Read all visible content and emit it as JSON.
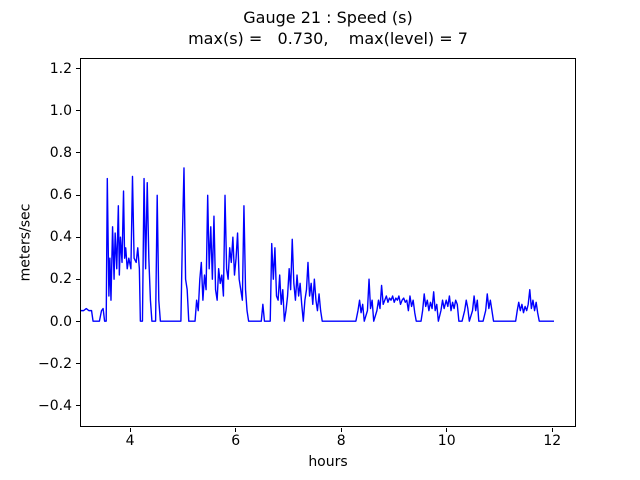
{
  "chart_data": {
    "type": "line",
    "title": "Gauge 21 : Speed (s)",
    "subtitle": "max(s) =   0.730,    max(level) = 7",
    "xlabel": "hours",
    "ylabel": "meters/sec",
    "xlim": [
      3.05,
      12.45
    ],
    "ylim": [
      -0.5,
      1.25
    ],
    "xticks": [
      4,
      6,
      8,
      10,
      12
    ],
    "xtick_labels": [
      "4",
      "6",
      "8",
      "10",
      "12"
    ],
    "yticks": [
      -0.4,
      -0.2,
      0.0,
      0.2,
      0.4,
      0.6,
      0.8,
      1.0,
      1.2
    ],
    "ytick_labels": [
      "−0.4",
      "−0.2",
      "0.0",
      "0.2",
      "0.4",
      "0.6",
      "0.8",
      "1.0",
      "1.2"
    ],
    "line_color": "#0000ff",
    "line_width": 1.4,
    "grid": false,
    "legend": null,
    "max_s": 0.73,
    "max_level": 7,
    "points": [
      [
        3.05,
        0.05
      ],
      [
        3.1,
        0.05
      ],
      [
        3.15,
        0.06
      ],
      [
        3.2,
        0.05
      ],
      [
        3.25,
        0.05
      ],
      [
        3.28,
        0.0
      ],
      [
        3.4,
        0.0
      ],
      [
        3.44,
        0.05
      ],
      [
        3.47,
        0.06
      ],
      [
        3.5,
        0.0
      ],
      [
        3.53,
        0.0
      ],
      [
        3.55,
        0.68
      ],
      [
        3.58,
        0.12
      ],
      [
        3.6,
        0.3
      ],
      [
        3.62,
        0.1
      ],
      [
        3.65,
        0.45
      ],
      [
        3.68,
        0.2
      ],
      [
        3.7,
        0.42
      ],
      [
        3.73,
        0.25
      ],
      [
        3.76,
        0.55
      ],
      [
        3.78,
        0.22
      ],
      [
        3.8,
        0.4
      ],
      [
        3.83,
        0.28
      ],
      [
        3.86,
        0.62
      ],
      [
        3.88,
        0.3
      ],
      [
        3.9,
        0.35
      ],
      [
        3.93,
        0.25
      ],
      [
        3.96,
        0.3
      ],
      [
        4.0,
        0.25
      ],
      [
        4.03,
        0.69
      ],
      [
        4.06,
        0.3
      ],
      [
        4.1,
        0.28
      ],
      [
        4.13,
        0.35
      ],
      [
        4.16,
        0.25
      ],
      [
        4.18,
        0.0
      ],
      [
        4.22,
        0.0
      ],
      [
        4.25,
        0.68
      ],
      [
        4.28,
        0.25
      ],
      [
        4.31,
        0.66
      ],
      [
        4.34,
        0.3
      ],
      [
        4.37,
        0.1
      ],
      [
        4.4,
        0.0
      ],
      [
        4.47,
        0.0
      ],
      [
        4.5,
        0.6
      ],
      [
        4.53,
        0.1
      ],
      [
        4.56,
        0.0
      ],
      [
        4.7,
        0.0
      ],
      [
        4.95,
        0.0
      ],
      [
        4.98,
        0.4
      ],
      [
        5.01,
        0.73
      ],
      [
        5.04,
        0.2
      ],
      [
        5.07,
        0.15
      ],
      [
        5.1,
        0.0
      ],
      [
        5.22,
        0.0
      ],
      [
        5.25,
        0.1
      ],
      [
        5.28,
        0.05
      ],
      [
        5.31,
        0.2
      ],
      [
        5.34,
        0.28
      ],
      [
        5.37,
        0.1
      ],
      [
        5.4,
        0.22
      ],
      [
        5.43,
        0.15
      ],
      [
        5.46,
        0.6
      ],
      [
        5.49,
        0.25
      ],
      [
        5.52,
        0.45
      ],
      [
        5.55,
        0.2
      ],
      [
        5.58,
        0.5
      ],
      [
        5.61,
        0.15
      ],
      [
        5.64,
        0.1
      ],
      [
        5.67,
        0.25
      ],
      [
        5.7,
        0.18
      ],
      [
        5.73,
        0.22
      ],
      [
        5.76,
        0.12
      ],
      [
        5.79,
        0.6
      ],
      [
        5.82,
        0.25
      ],
      [
        5.85,
        0.2
      ],
      [
        5.88,
        0.35
      ],
      [
        5.91,
        0.28
      ],
      [
        5.94,
        0.4
      ],
      [
        5.97,
        0.22
      ],
      [
        6.0,
        0.3
      ],
      [
        6.03,
        0.42
      ],
      [
        6.06,
        0.2
      ],
      [
        6.09,
        0.15
      ],
      [
        6.12,
        0.1
      ],
      [
        6.15,
        0.55
      ],
      [
        6.18,
        0.15
      ],
      [
        6.21,
        0.05
      ],
      [
        6.24,
        0.0
      ],
      [
        6.48,
        0.0
      ],
      [
        6.51,
        0.08
      ],
      [
        6.54,
        0.0
      ],
      [
        6.65,
        0.0
      ],
      [
        6.68,
        0.37
      ],
      [
        6.71,
        0.2
      ],
      [
        6.74,
        0.35
      ],
      [
        6.77,
        0.12
      ],
      [
        6.8,
        0.1
      ],
      [
        6.83,
        0.22
      ],
      [
        6.86,
        0.08
      ],
      [
        6.89,
        0.15
      ],
      [
        6.92,
        0.0
      ],
      [
        6.95,
        0.05
      ],
      [
        6.98,
        0.12
      ],
      [
        7.01,
        0.25
      ],
      [
        7.04,
        0.15
      ],
      [
        7.07,
        0.39
      ],
      [
        7.1,
        0.18
      ],
      [
        7.13,
        0.1
      ],
      [
        7.16,
        0.22
      ],
      [
        7.19,
        0.12
      ],
      [
        7.22,
        0.18
      ],
      [
        7.25,
        0.08
      ],
      [
        7.28,
        0.0
      ],
      [
        7.31,
        0.1
      ],
      [
        7.34,
        0.15
      ],
      [
        7.37,
        0.28
      ],
      [
        7.4,
        0.12
      ],
      [
        7.43,
        0.18
      ],
      [
        7.46,
        0.08
      ],
      [
        7.49,
        0.2
      ],
      [
        7.52,
        0.1
      ],
      [
        7.55,
        0.05
      ],
      [
        7.58,
        0.13
      ],
      [
        7.61,
        0.05
      ],
      [
        7.64,
        0.0
      ],
      [
        7.8,
        0.0
      ],
      [
        8.28,
        0.0
      ],
      [
        8.32,
        0.05
      ],
      [
        8.35,
        0.1
      ],
      [
        8.38,
        0.04
      ],
      [
        8.41,
        0.08
      ],
      [
        8.44,
        0.0
      ],
      [
        8.5,
        0.05
      ],
      [
        8.53,
        0.2
      ],
      [
        8.56,
        0.06
      ],
      [
        8.59,
        0.1
      ],
      [
        8.62,
        0.0
      ],
      [
        8.68,
        0.05
      ],
      [
        8.71,
        0.1
      ],
      [
        8.74,
        0.06
      ],
      [
        8.77,
        0.17
      ],
      [
        8.8,
        0.08
      ],
      [
        8.83,
        0.1
      ],
      [
        8.86,
        0.12
      ],
      [
        8.89,
        0.09
      ],
      [
        8.92,
        0.11
      ],
      [
        8.95,
        0.1
      ],
      [
        8.98,
        0.12
      ],
      [
        9.01,
        0.09
      ],
      [
        9.04,
        0.11
      ],
      [
        9.07,
        0.1
      ],
      [
        9.1,
        0.12
      ],
      [
        9.13,
        0.08
      ],
      [
        9.16,
        0.1
      ],
      [
        9.19,
        0.11
      ],
      [
        9.22,
        0.09
      ],
      [
        9.25,
        0.1
      ],
      [
        9.28,
        0.05
      ],
      [
        9.31,
        0.12
      ],
      [
        9.34,
        0.07
      ],
      [
        9.37,
        0.1
      ],
      [
        9.4,
        0.04
      ],
      [
        9.43,
        0.0
      ],
      [
        9.52,
        0.0
      ],
      [
        9.55,
        0.05
      ],
      [
        9.58,
        0.13
      ],
      [
        9.61,
        0.07
      ],
      [
        9.64,
        0.1
      ],
      [
        9.67,
        0.05
      ],
      [
        9.7,
        0.09
      ],
      [
        9.73,
        0.06
      ],
      [
        9.76,
        0.14
      ],
      [
        9.79,
        0.05
      ],
      [
        9.82,
        0.08
      ],
      [
        9.85,
        0.0
      ],
      [
        9.9,
        0.05
      ],
      [
        9.93,
        0.1
      ],
      [
        9.96,
        0.06
      ],
      [
        10.0,
        0.1
      ],
      [
        10.03,
        0.07
      ],
      [
        10.06,
        0.12
      ],
      [
        10.09,
        0.05
      ],
      [
        10.12,
        0.09
      ],
      [
        10.15,
        0.06
      ],
      [
        10.18,
        0.1
      ],
      [
        10.21,
        0.08
      ],
      [
        10.24,
        0.0
      ],
      [
        10.3,
        0.0
      ],
      [
        10.35,
        0.05
      ],
      [
        10.38,
        0.1
      ],
      [
        10.41,
        0.06
      ],
      [
        10.44,
        0.0
      ],
      [
        10.5,
        0.05
      ],
      [
        10.53,
        0.12
      ],
      [
        10.56,
        0.05
      ],
      [
        10.59,
        0.1
      ],
      [
        10.62,
        0.0
      ],
      [
        10.7,
        0.0
      ],
      [
        10.75,
        0.05
      ],
      [
        10.78,
        0.13
      ],
      [
        10.81,
        0.06
      ],
      [
        10.84,
        0.1
      ],
      [
        10.87,
        0.05
      ],
      [
        10.9,
        0.0
      ],
      [
        11.0,
        0.0
      ],
      [
        11.32,
        0.0
      ],
      [
        11.35,
        0.05
      ],
      [
        11.38,
        0.09
      ],
      [
        11.41,
        0.05
      ],
      [
        11.44,
        0.08
      ],
      [
        11.47,
        0.04
      ],
      [
        11.5,
        0.07
      ],
      [
        11.53,
        0.05
      ],
      [
        11.56,
        0.08
      ],
      [
        11.59,
        0.15
      ],
      [
        11.62,
        0.06
      ],
      [
        11.65,
        0.1
      ],
      [
        11.68,
        0.05
      ],
      [
        11.71,
        0.09
      ],
      [
        11.74,
        0.04
      ],
      [
        11.77,
        0.0
      ],
      [
        11.9,
        0.0
      ],
      [
        12.05,
        0.0
      ]
    ]
  }
}
